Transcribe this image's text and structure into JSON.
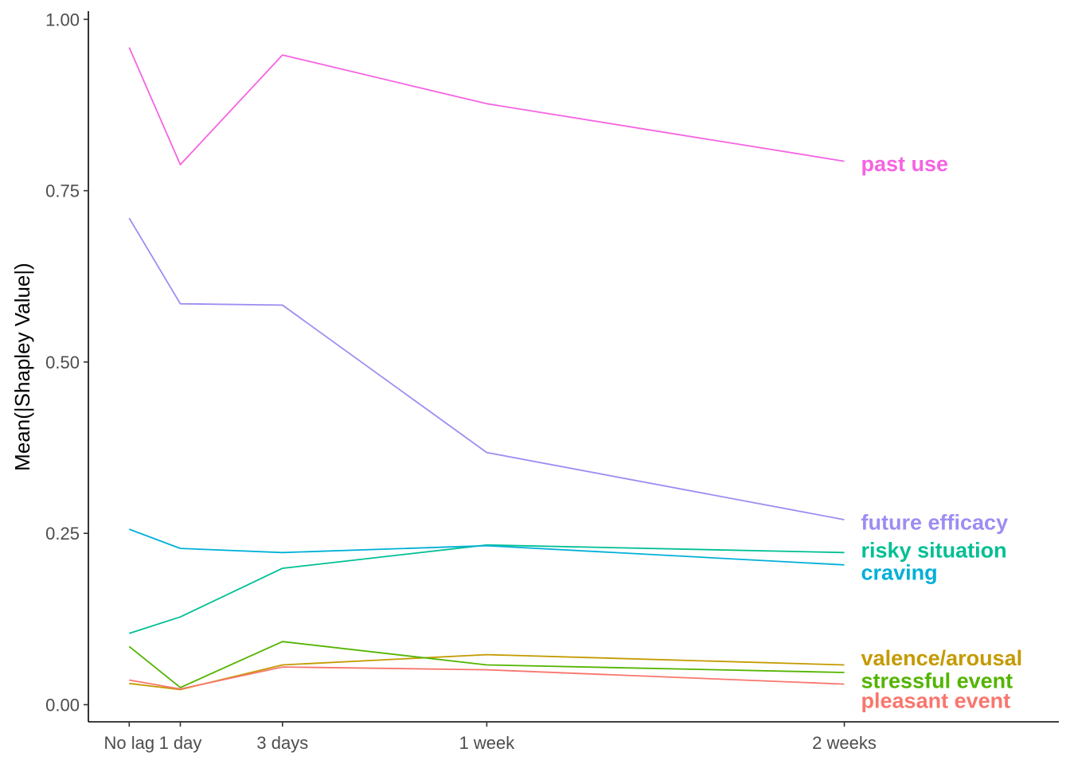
{
  "chart_data": {
    "type": "line",
    "title": "",
    "xlabel": "",
    "ylabel": "Mean(|Shapley Value|)",
    "x_days": [
      0,
      1,
      3,
      7,
      14
    ],
    "x_tick_labels": [
      "No lag",
      "1 day",
      "3 days",
      "1 week",
      "2 weeks"
    ],
    "y_ticks": [
      0,
      0.25,
      0.5,
      0.75,
      1.0
    ],
    "y_tick_labels": [
      "0.00",
      "0.25",
      "0.50",
      "0.75",
      "1.00"
    ],
    "xlim": [
      -0.8,
      18.2
    ],
    "ylim": [
      -0.025,
      1.012
    ],
    "grid": false,
    "legend": "direct labels at right end of lines",
    "series": [
      {
        "name": "past use",
        "color": "#F564E3",
        "values": [
          0.959,
          0.788,
          0.948,
          0.877,
          0.793
        ]
      },
      {
        "name": "future efficacy",
        "color": "#9C8DF2",
        "values": [
          0.71,
          0.585,
          0.583,
          0.368,
          0.27
        ]
      },
      {
        "name": "risky situation",
        "color": "#00BF94",
        "values": [
          0.104,
          0.128,
          0.199,
          0.233,
          0.222
        ]
      },
      {
        "name": "craving",
        "color": "#00B0D8",
        "values": [
          0.256,
          0.228,
          0.222,
          0.232,
          0.204
        ]
      },
      {
        "name": "valence/arousal",
        "color": "#C49A00",
        "values": [
          0.031,
          0.022,
          0.058,
          0.073,
          0.058
        ]
      },
      {
        "name": "stressful event",
        "color": "#53B400",
        "values": [
          0.085,
          0.025,
          0.092,
          0.058,
          0.047
        ]
      },
      {
        "name": "pleasant event",
        "color": "#F8766D",
        "values": [
          0.036,
          0.023,
          0.055,
          0.051,
          0.03
        ]
      }
    ],
    "label_offsets": [
      {
        "name": "past use",
        "label_y": 0.789
      },
      {
        "name": "future efficacy",
        "label_y": 0.266
      },
      {
        "name": "risky situation",
        "label_y": 0.225
      },
      {
        "name": "craving",
        "label_y": 0.193
      },
      {
        "name": "valence/arousal",
        "label_y": 0.068
      },
      {
        "name": "stressful event",
        "label_y": 0.035
      },
      {
        "name": "pleasant event",
        "label_y": 0.006
      }
    ]
  }
}
